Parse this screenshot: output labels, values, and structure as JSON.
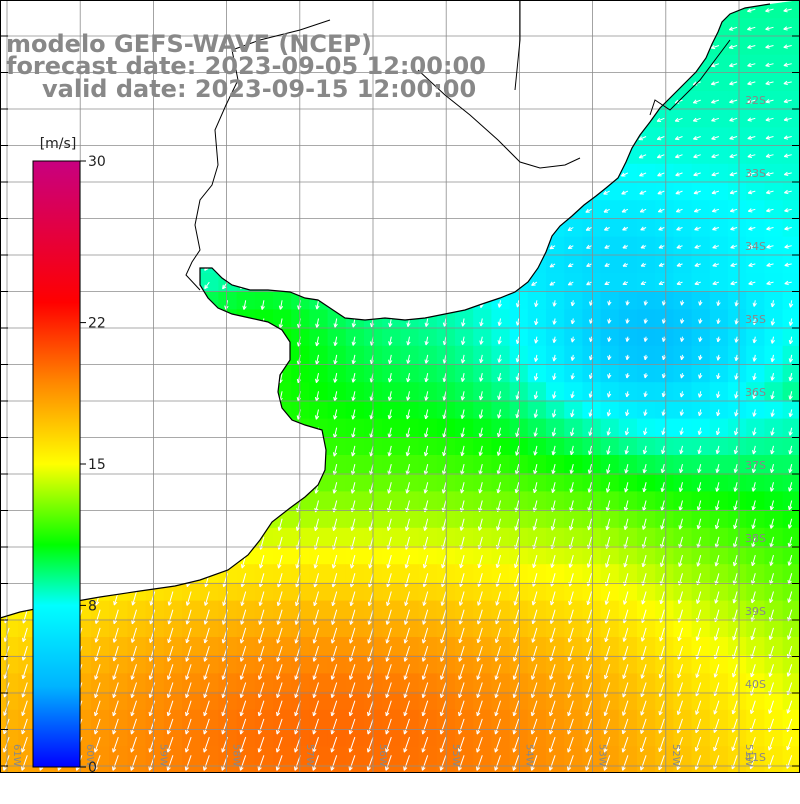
{
  "title": {
    "line1": "modelo GEFS-WAVE (NCEP)",
    "line2": "forecast date: 2023-09-05 12:00:00",
    "line3": "valid date: 2023-09-15 12:00:00"
  },
  "colorbar": {
    "unit": "[m/s]",
    "min": 0,
    "max": 30,
    "ticks": [
      {
        "value": 30,
        "label": "30"
      },
      {
        "value": 22,
        "label": "22"
      },
      {
        "value": 15,
        "label": "15"
      },
      {
        "value": 8,
        "label": "8"
      },
      {
        "value": 0,
        "label": "0"
      }
    ],
    "stops": [
      "#0000ff",
      "#00b4ff",
      "#00ffff",
      "#00ff00",
      "#ffff00",
      "#ff8800",
      "#ff0000",
      "#c80080"
    ]
  },
  "axes": {
    "lon_labels": [
      "61W",
      "60W",
      "59W",
      "58W",
      "57W",
      "56W",
      "55W",
      "54W",
      "53W",
      "52W",
      "51W"
    ],
    "lat_labels": [
      "32S",
      "33S",
      "34S",
      "35S",
      "36S",
      "37S",
      "38S",
      "39S",
      "40S",
      "41S"
    ]
  },
  "colors": {
    "land": "#ffffff",
    "coast": "#000000",
    "grid": "#999999",
    "arrow": "#ffffff",
    "text": "#888888"
  }
}
